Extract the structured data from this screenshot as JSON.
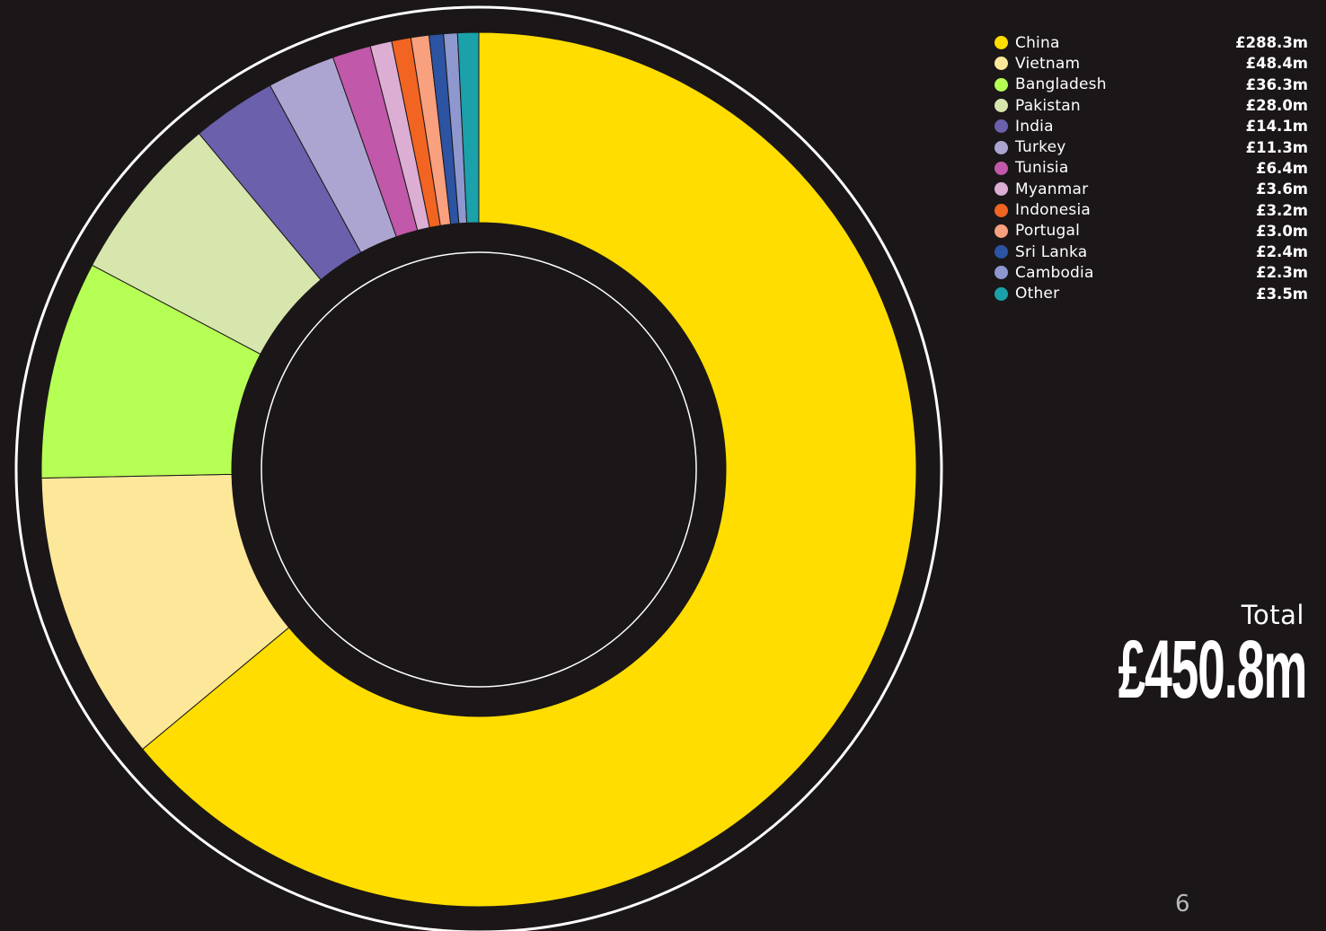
{
  "chart_data": {
    "type": "pie",
    "series": [
      {
        "name": "China",
        "value": 288.3,
        "label": "£288.3m",
        "color": "#ffdd00"
      },
      {
        "name": "Vietnam",
        "value": 48.4,
        "label": "£48.4m",
        "color": "#fde89a"
      },
      {
        "name": "Bangladesh",
        "value": 36.3,
        "label": "£36.3m",
        "color": "#b6ff55"
      },
      {
        "name": "Pakistan",
        "value": 28.0,
        "label": "£28.0m",
        "color": "#d7e6ad"
      },
      {
        "name": "India",
        "value": 14.1,
        "label": "£14.1m",
        "color": "#6a60ac"
      },
      {
        "name": "Turkey",
        "value": 11.3,
        "label": "£11.3m",
        "color": "#ada5d1"
      },
      {
        "name": "Tunisia",
        "value": 6.4,
        "label": "£6.4m",
        "color": "#c158a9"
      },
      {
        "name": "Myanmar",
        "value": 3.6,
        "label": "£3.6m",
        "color": "#dcaed4"
      },
      {
        "name": "Indonesia",
        "value": 3.2,
        "label": "£3.2m",
        "color": "#f26421"
      },
      {
        "name": "Portugal",
        "value": 3.0,
        "label": "£3.0m",
        "color": "#f9a07f"
      },
      {
        "name": "Sri Lanka",
        "value": 2.4,
        "label": "£2.4m",
        "color": "#2d53a3"
      },
      {
        "name": "Cambodia",
        "value": 2.3,
        "label": "£2.3m",
        "color": "#8e98cf"
      },
      {
        "name": "Other",
        "value": 3.5,
        "label": "£3.5m",
        "color": "#1aa1a9"
      }
    ],
    "legend_position": "top-right",
    "start_angle": "top",
    "direction": "clockwise"
  },
  "total": {
    "label": "Total",
    "value": "£450.8m"
  },
  "page_number": "6"
}
